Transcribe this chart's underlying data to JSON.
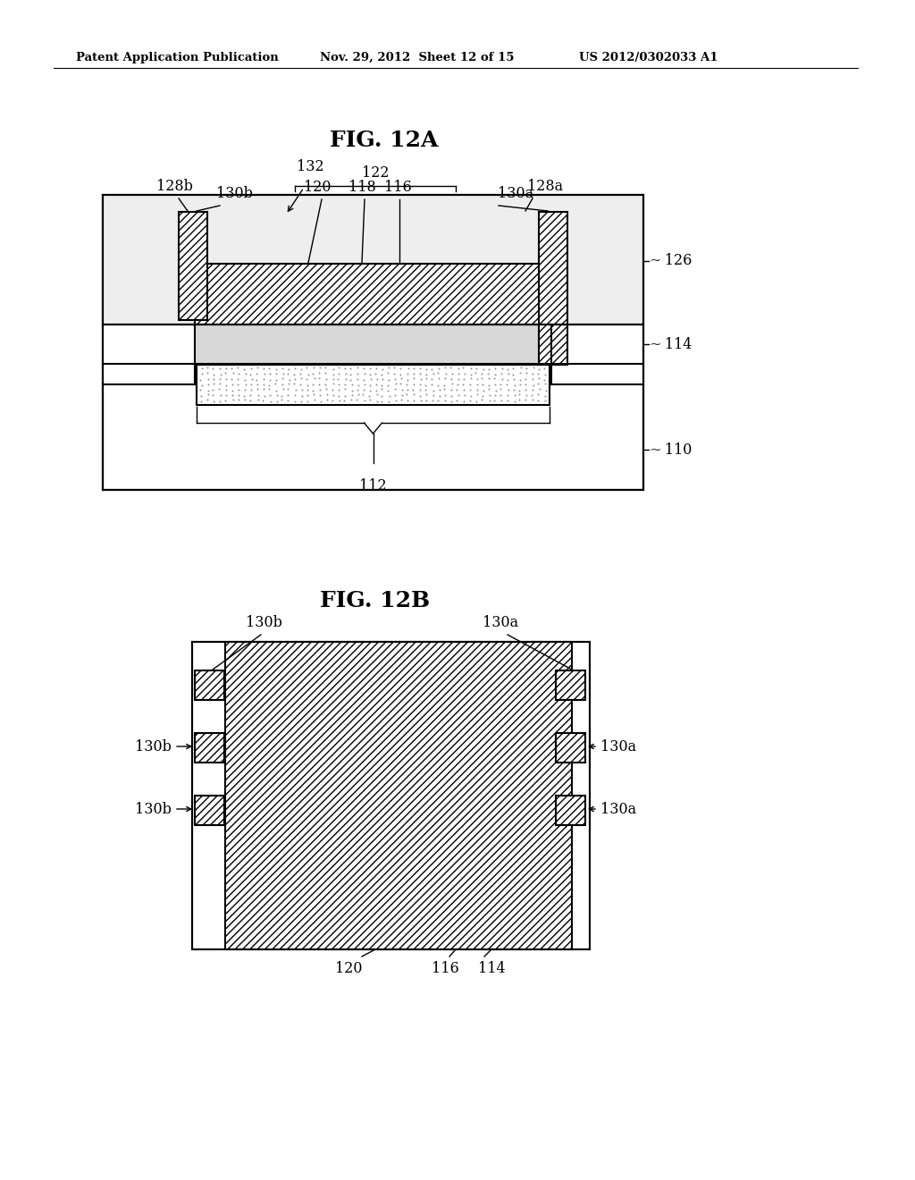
{
  "bg_color": "#ffffff",
  "header_left": "Patent Application Publication",
  "header_mid": "Nov. 29, 2012  Sheet 12 of 15",
  "header_right": "US 2012/0302033 A1",
  "fig12a_title": "FIG. 12A",
  "fig12b_title": "FIG. 12B",
  "black": "#000000",
  "gray_light": "#d8d8d8",
  "gray_stipple": "#aaaaaa",
  "lw_main": 1.5,
  "lw_thin": 1.0
}
